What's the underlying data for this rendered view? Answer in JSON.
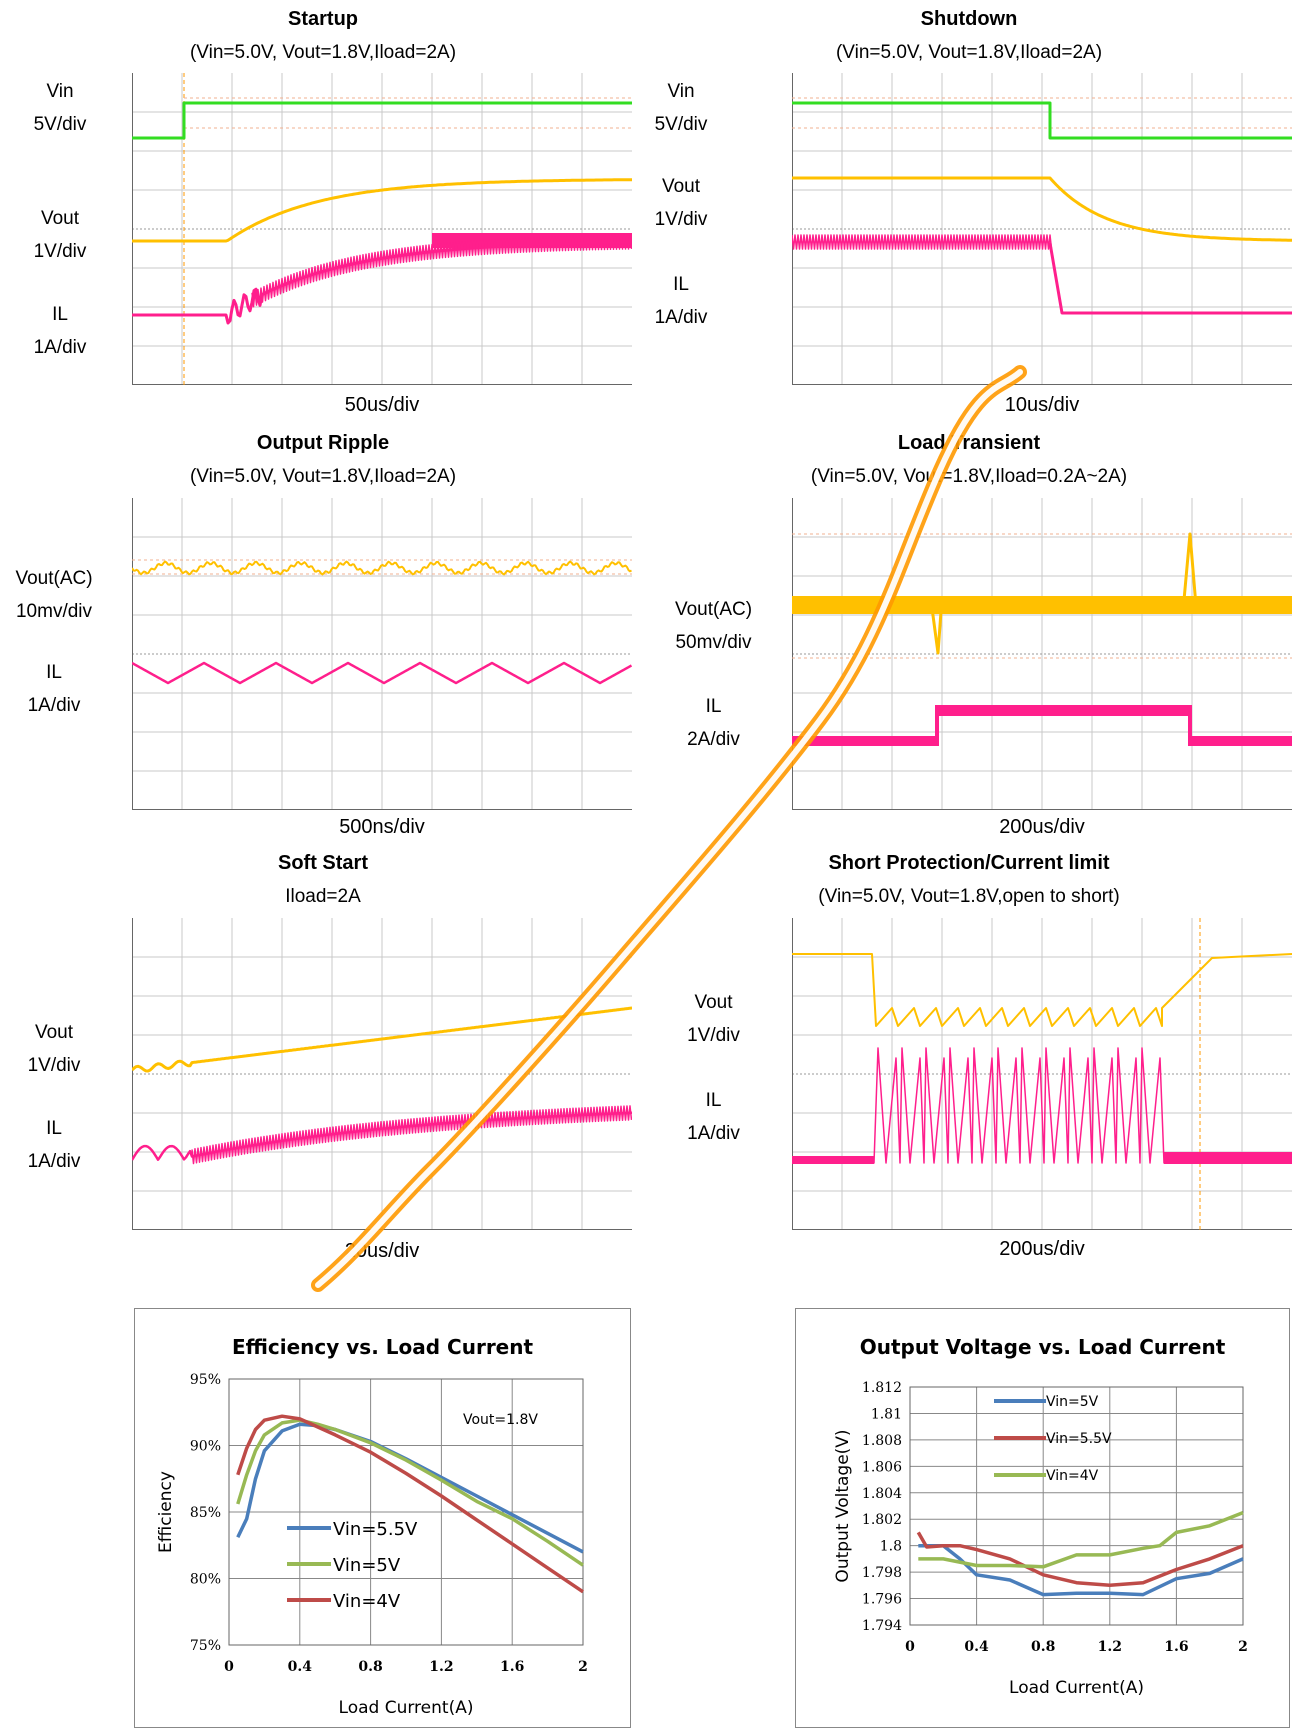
{
  "scopes": {
    "startup": {
      "title": "Startup",
      "condition": "(Vin=5.0V, Vout=1.8V,Iload=2A)",
      "timediv": "50us/div",
      "labels": [
        "Vin",
        "5V/div",
        "Vout",
        "1V/div",
        "IL",
        "1A/div"
      ]
    },
    "shutdown": {
      "title": "Shutdown",
      "condition": "(Vin=5.0V, Vout=1.8V,Iload=2A)",
      "timediv": "10us/div",
      "labels": [
        "Vin",
        "5V/div",
        "Vout",
        "1V/div",
        "IL",
        "1A/div"
      ]
    },
    "ripple": {
      "title": "Output Ripple",
      "condition": "(Vin=5.0V, Vout=1.8V,Iload=2A)",
      "timediv": "500ns/div",
      "labels": [
        "Vout(AC)",
        "10mv/div",
        "IL",
        "1A/div"
      ]
    },
    "transient": {
      "title": "Load Transient",
      "condition": "(Vin=5.0V, Vout=1.8V,Iload=0.2A~2A)",
      "timediv": "200us/div",
      "labels": [
        "Vout(AC)",
        "50mv/div",
        "IL",
        "2A/div"
      ]
    },
    "softstart": {
      "title": "Soft Start",
      "condition": "Iload=2A",
      "timediv": "20us/div",
      "labels": [
        "Vout",
        "1V/div",
        "IL",
        "1A/div"
      ]
    },
    "short": {
      "title": "Short Protection/Current limit",
      "condition": "(Vin=5.0V, Vout=1.8V,open to short)",
      "timediv": "200us/div",
      "labels": [
        "Vout",
        "1V/div",
        "IL",
        "1A/div"
      ]
    }
  },
  "colors": {
    "vin": "#33dd22",
    "vout": "#ffc000",
    "il": "#ff1f8c",
    "grid": "#c8c8c8",
    "blue": "#4a7ebb",
    "red": "#be4b48",
    "green": "#98b954"
  },
  "chart_data": [
    {
      "type": "line",
      "title": "Efficiency vs. Load Current",
      "xlabel": "Load Current(A)",
      "ylabel": "Efficiency",
      "annotation": "Vout=1.8V",
      "xlim": [
        0,
        2
      ],
      "ylim": [
        75,
        95
      ],
      "xticks": [
        "0",
        "0.4",
        "0.8",
        "1.2",
        "1.6",
        "2"
      ],
      "yticks": [
        "75%",
        "80%",
        "85%",
        "90%",
        "95%"
      ],
      "legend": "bottom-left",
      "series": [
        {
          "name": "Vin=5.5V",
          "color": "blue",
          "x": [
            0.05,
            0.1,
            0.15,
            0.2,
            0.3,
            0.4,
            0.5,
            0.6,
            0.8,
            1.0,
            1.2,
            1.4,
            1.6,
            1.8,
            2.0
          ],
          "y": [
            83.1,
            84.5,
            87.5,
            89.6,
            91.1,
            91.6,
            91.5,
            91.2,
            90.3,
            89.0,
            87.6,
            86.2,
            84.8,
            83.4,
            82.0
          ]
        },
        {
          "name": "Vin=5V",
          "color": "green",
          "x": [
            0.05,
            0.1,
            0.15,
            0.2,
            0.3,
            0.4,
            0.5,
            0.6,
            0.8,
            1.0,
            1.2,
            1.4,
            1.6,
            1.8,
            2.0
          ],
          "y": [
            85.6,
            87.8,
            89.6,
            90.8,
            91.7,
            91.9,
            91.6,
            91.2,
            90.2,
            88.9,
            87.4,
            85.8,
            84.5,
            82.8,
            81.0
          ]
        },
        {
          "name": "Vin=4V",
          "color": "red",
          "x": [
            0.05,
            0.1,
            0.15,
            0.2,
            0.3,
            0.4,
            0.5,
            0.6,
            0.8,
            1.0,
            1.2,
            1.4,
            1.6,
            1.8,
            2.0
          ],
          "y": [
            87.8,
            89.8,
            91.2,
            91.9,
            92.2,
            92.0,
            91.4,
            90.8,
            89.5,
            87.9,
            86.2,
            84.4,
            82.6,
            80.8,
            79.0
          ]
        }
      ]
    },
    {
      "type": "line",
      "title": "Output Voltage vs. Load Current",
      "xlabel": "Load Current(A)",
      "ylabel": "Output Voltage(V)",
      "xlim": [
        0,
        2
      ],
      "ylim": [
        1.794,
        1.812
      ],
      "xticks": [
        "0",
        "0.4",
        "0.8",
        "1.2",
        "1.6",
        "2"
      ],
      "yticks": [
        "1.794",
        "1.796",
        "1.798",
        "1.8",
        "1.802",
        "1.804",
        "1.806",
        "1.808",
        "1.81",
        "1.812"
      ],
      "legend": "top-center",
      "series": [
        {
          "name": "Vin=5V",
          "color": "blue",
          "x": [
            0.05,
            0.2,
            0.3,
            0.4,
            0.6,
            0.8,
            1.0,
            1.2,
            1.4,
            1.6,
            1.8,
            2.0
          ],
          "y": [
            1.8,
            1.8,
            1.799,
            1.7978,
            1.7974,
            1.7963,
            1.7964,
            1.7964,
            1.7963,
            1.7975,
            1.7979,
            1.799
          ]
        },
        {
          "name": "Vin=5.5V",
          "color": "red",
          "x": [
            0.05,
            0.1,
            0.2,
            0.3,
            0.4,
            0.6,
            0.8,
            1.0,
            1.2,
            1.4,
            1.6,
            1.8,
            2.0
          ],
          "y": [
            1.801,
            1.7999,
            1.8,
            1.8,
            1.7997,
            1.799,
            1.7978,
            1.7972,
            1.797,
            1.7972,
            1.7982,
            1.799,
            1.8
          ]
        },
        {
          "name": "Vin=4V",
          "color": "green",
          "x": [
            0.05,
            0.2,
            0.4,
            0.6,
            0.8,
            1.0,
            1.2,
            1.4,
            1.5,
            1.6,
            1.8,
            2.0
          ],
          "y": [
            1.799,
            1.799,
            1.7985,
            1.7985,
            1.7984,
            1.7993,
            1.7993,
            1.7998,
            1.8,
            1.801,
            1.8015,
            1.8025
          ]
        }
      ]
    }
  ]
}
